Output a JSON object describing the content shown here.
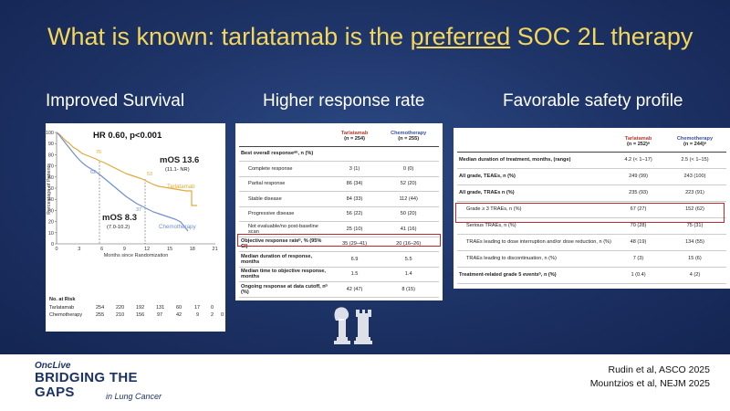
{
  "slide": {
    "title_pre": "What is known: tarlatamab is the ",
    "title_underlined": "preferred",
    "title_post": " SOC 2L therapy"
  },
  "sections": {
    "survival": "Improved Survival",
    "response": "Higher response rate",
    "safety": "Favorable safety profile"
  },
  "km": {
    "hr": "HR 0.60, p<0.001",
    "mos_tarla": "mOS 13.6",
    "mos_tarla_ci": "(11.1- NR)",
    "mos_chemo": "mOS 8.3",
    "mos_chemo_ci": "(7.0-10.2)",
    "label_tarla": "Tarlatamab",
    "label_chemo": "Chemotherapy",
    "ylabel": "Percentage of Patients",
    "xlabel": "Months since Randomization",
    "yticks": [
      "0",
      "10",
      "20",
      "30",
      "40",
      "50",
      "60",
      "70",
      "80",
      "90",
      "100"
    ],
    "xticks": [
      "0",
      "3",
      "6",
      "9",
      "12",
      "15",
      "18",
      "21"
    ],
    "pt_tarla_6": "76",
    "pt_chemo_6": "62",
    "pt_tarla_12": "53",
    "pt_chemo_12": "37",
    "colors": {
      "tarla": "#e3a93a",
      "chemo": "#6f8fd0"
    }
  },
  "risk": {
    "title": "No. at Risk",
    "rows": [
      {
        "label": "Tarlatamab",
        "values": [
          "254",
          "220",
          "192",
          "131",
          "60",
          "17",
          "0",
          ""
        ]
      },
      {
        "label": "Chemotherapy",
        "values": [
          "255",
          "210",
          "156",
          "97",
          "42",
          "9",
          "2",
          "0"
        ]
      }
    ]
  },
  "response_table": {
    "col_tarla": "Tarlatamab",
    "col_tarla_n": "(n = 254)",
    "col_chemo": "Chemotherapy",
    "col_chemo_n": "(n = 255)",
    "rows": [
      {
        "label": "Best overall responseᵃᵇ, n (%)",
        "t": "",
        "c": "",
        "bold": true
      },
      {
        "label": "Complete response",
        "t": "3 (1)",
        "c": "0 (0)",
        "ind": true
      },
      {
        "label": "Partial response",
        "t": "86 (34)",
        "c": "52 (20)",
        "ind": true
      },
      {
        "label": "Stable disease",
        "t": "84 (33)",
        "c": "112 (44)",
        "ind": true
      },
      {
        "label": "Progressive disease",
        "t": "56 (22)",
        "c": "50 (20)",
        "ind": true
      },
      {
        "label": "Not evaluable/no post-baseline scan",
        "t": "25 (10)",
        "c": "41 (16)",
        "ind": true
      },
      {
        "label": "Objective response rateᵇ, % (95% CI)",
        "t": "35 (29–41)",
        "c": "20 (16–26)",
        "bold": true
      },
      {
        "label": "Median duration of response, months",
        "t": "6.9",
        "c": "5.5",
        "bold": true
      },
      {
        "label": "Median time to objective response, months",
        "t": "1.5",
        "c": "1.4",
        "bold": true
      },
      {
        "label": "Ongoing response at data cutoff, nᵇ (%)",
        "t": "42 (47)",
        "c": "8 (15)",
        "bold": true
      }
    ]
  },
  "safety_table": {
    "col_tarla": "Tarlatamab",
    "col_tarla_n": "(n = 252)ᵃ",
    "col_chemo": "Chemotherapy",
    "col_chemo_n": "(n = 244)ᵃ",
    "rows": [
      {
        "label": "Median duration of treatment, months, (range)",
        "t": "4.2 (< 1–17)",
        "c": "2.5 (< 1–15)",
        "bold": true
      },
      {
        "label": "All grade, TEAEs, n (%)",
        "t": "249 (99)",
        "c": "243 (100)",
        "bold": true
      },
      {
        "label": "All grade, TRAEs n (%)",
        "t": "235 (93)",
        "c": "223 (91)",
        "bold": true
      },
      {
        "label": "Grade ≥ 3 TRAEs, n (%)",
        "t": "67 (27)",
        "c": "152 (62)",
        "ind": true
      },
      {
        "label": "Serious TRAEs, n (%)",
        "t": "70 (28)",
        "c": "75 (31)",
        "ind": true
      },
      {
        "label": "TRAEs leading to dose interruption and/or dose reduction, n (%)",
        "t": "48 (19)",
        "c": "134 (55)",
        "ind": true
      },
      {
        "label": "TRAEs leading to discontinuation, n (%)",
        "t": "7 (3)",
        "c": "15 (6)",
        "ind": true
      },
      {
        "label": "Treatment-related grade 5 eventsᵇ, n (%)",
        "t": "1 (0.4)",
        "c": "4 (2)",
        "bold": true
      }
    ]
  },
  "logo": {
    "onclive": "OncLive",
    "bridging": "BRIDGING THE GAPS",
    "sub": "in Lung Cancer"
  },
  "refs": [
    "Rudin et al, ASCO 2025",
    "Mountzios et al, NEJM 2025"
  ]
}
